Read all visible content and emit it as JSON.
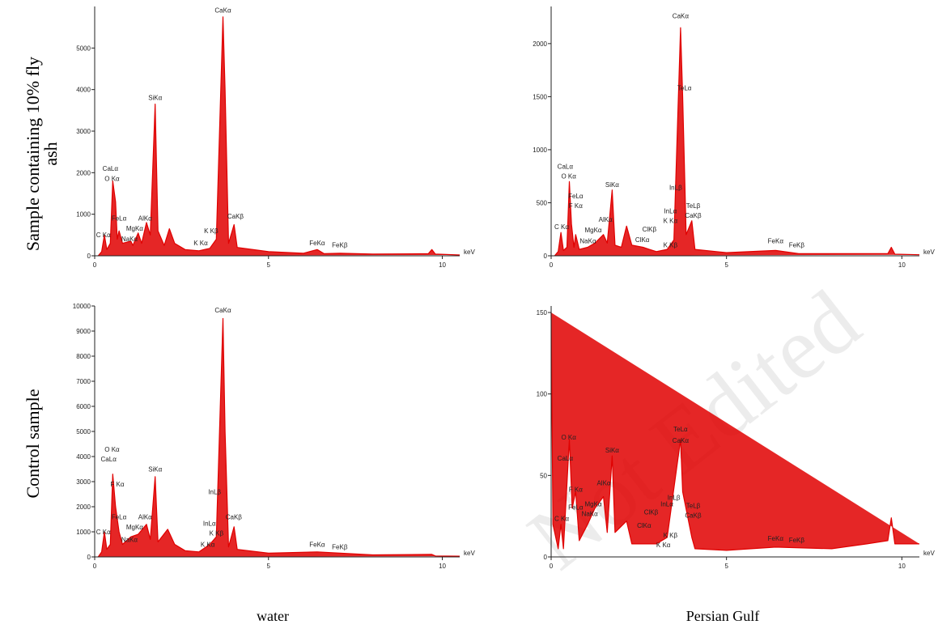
{
  "row_labels": [
    [
      "Sample containing 10% fly",
      "ash"
    ],
    [
      "Control sample"
    ]
  ],
  "column_labels": [
    "water",
    "Persian Gulf"
  ],
  "watermark": "Not Edited",
  "chart_data": [
    {
      "type": "line",
      "color": "#e00000",
      "xlabel": "keV",
      "xlim": [
        0,
        10.5
      ],
      "ylim": [
        0,
        6000
      ],
      "xticks": [
        0,
        5,
        10
      ],
      "yticks": [
        0,
        1000,
        2000,
        3000,
        4000,
        5000
      ],
      "x": [
        0.1,
        0.2,
        0.28,
        0.35,
        0.45,
        0.52,
        0.6,
        0.65,
        0.7,
        0.8,
        1.04,
        1.1,
        1.25,
        1.35,
        1.49,
        1.6,
        1.74,
        1.82,
        2.0,
        2.15,
        2.3,
        2.6,
        3.0,
        3.31,
        3.5,
        3.69,
        3.75,
        3.85,
        4.01,
        4.1,
        5,
        6.0,
        6.4,
        6.6,
        7.06,
        8,
        9.6,
        9.7,
        9.8,
        10.5
      ],
      "values": [
        0,
        100,
        500,
        150,
        300,
        1800,
        1300,
        400,
        600,
        300,
        350,
        250,
        550,
        300,
        800,
        500,
        3650,
        600,
        250,
        650,
        300,
        150,
        120,
        180,
        400,
        5750,
        4000,
        300,
        750,
        200,
        100,
        60,
        150,
        50,
        60,
        40,
        50,
        150,
        40,
        20
      ],
      "annotations": [
        {
          "text": "CaKα",
          "x": 3.69,
          "y": 5850
        },
        {
          "text": "SiKα",
          "x": 1.74,
          "y": 3750
        },
        {
          "text": "CaLα",
          "x": 0.45,
          "y": 2050
        },
        {
          "text": "O Kα",
          "x": 0.5,
          "y": 1800
        },
        {
          "text": "FeLα",
          "x": 0.7,
          "y": 850
        },
        {
          "text": "AlKα",
          "x": 1.45,
          "y": 850
        },
        {
          "text": "MgKα",
          "x": 1.15,
          "y": 600
        },
        {
          "text": "NaKα",
          "x": 1.0,
          "y": 350
        },
        {
          "text": "C Kα",
          "x": 0.25,
          "y": 450
        },
        {
          "text": "K Kβ",
          "x": 3.35,
          "y": 550
        },
        {
          "text": "CaKβ",
          "x": 4.05,
          "y": 900
        },
        {
          "text": "K Kα",
          "x": 3.05,
          "y": 250
        },
        {
          "text": "FeKα",
          "x": 6.4,
          "y": 250
        },
        {
          "text": "FeKβ",
          "x": 7.05,
          "y": 200
        }
      ]
    },
    {
      "type": "line",
      "color": "#e00000",
      "xlabel": "keV",
      "xlim": [
        0,
        10.5
      ],
      "ylim": [
        0,
        2350
      ],
      "xticks": [
        0,
        5,
        10
      ],
      "yticks": [
        0,
        500,
        1000,
        1500,
        2000
      ],
      "x": [
        0.1,
        0.2,
        0.28,
        0.35,
        0.45,
        0.52,
        0.58,
        0.65,
        0.7,
        0.8,
        1.04,
        1.25,
        1.49,
        1.6,
        1.74,
        1.82,
        2.0,
        2.15,
        2.3,
        2.62,
        2.8,
        3.0,
        3.31,
        3.5,
        3.69,
        3.75,
        3.85,
        4.01,
        4.1,
        5,
        6.4,
        7.06,
        9.6,
        9.7,
        9.8,
        10.5
      ],
      "values": [
        0,
        40,
        220,
        50,
        80,
        700,
        300,
        80,
        200,
        60,
        80,
        120,
        200,
        120,
        620,
        100,
        80,
        280,
        100,
        80,
        60,
        40,
        60,
        150,
        2150,
        1500,
        200,
        330,
        60,
        30,
        50,
        20,
        20,
        80,
        15,
        10
      ],
      "annotations": [
        {
          "text": "CaKα",
          "x": 3.69,
          "y": 2240
        },
        {
          "text": "TeLα",
          "x": 3.8,
          "y": 1560
        },
        {
          "text": "CaLα",
          "x": 0.4,
          "y": 820
        },
        {
          "text": "O Kα",
          "x": 0.5,
          "y": 730
        },
        {
          "text": "FeLα",
          "x": 0.7,
          "y": 540
        },
        {
          "text": "F Kα",
          "x": 0.7,
          "y": 450
        },
        {
          "text": "SiKα",
          "x": 1.74,
          "y": 650
        },
        {
          "text": "InLβ",
          "x": 3.55,
          "y": 620
        },
        {
          "text": "InLα",
          "x": 3.4,
          "y": 400
        },
        {
          "text": "K Kα",
          "x": 3.4,
          "y": 310
        },
        {
          "text": "TeLβ",
          "x": 4.05,
          "y": 450
        },
        {
          "text": "CaKβ",
          "x": 4.05,
          "y": 360
        },
        {
          "text": "AlKα",
          "x": 1.55,
          "y": 320
        },
        {
          "text": "MgKα",
          "x": 1.2,
          "y": 220
        },
        {
          "text": "NaKα",
          "x": 1.05,
          "y": 120
        },
        {
          "text": "C Kα",
          "x": 0.3,
          "y": 250
        },
        {
          "text": "ClKβ",
          "x": 2.8,
          "y": 230
        },
        {
          "text": "ClKα",
          "x": 2.6,
          "y": 130
        },
        {
          "text": "K Kβ",
          "x": 3.4,
          "y": 80
        },
        {
          "text": "FeKα",
          "x": 6.4,
          "y": 120
        },
        {
          "text": "FeKβ",
          "x": 7.0,
          "y": 80
        }
      ]
    },
    {
      "type": "line",
      "color": "#e00000",
      "xlabel": "keV",
      "xlim": [
        0,
        10.5
      ],
      "ylim": [
        0,
        10000
      ],
      "xticks": [
        0,
        5,
        10
      ],
      "yticks": [
        0,
        1000,
        2000,
        3000,
        4000,
        5000,
        6000,
        7000,
        8000,
        9000,
        10000
      ],
      "x": [
        0.1,
        0.2,
        0.28,
        0.35,
        0.45,
        0.52,
        0.6,
        0.7,
        0.8,
        1.04,
        1.25,
        1.49,
        1.6,
        1.74,
        1.82,
        2.1,
        2.3,
        2.6,
        3.0,
        3.31,
        3.5,
        3.69,
        3.75,
        3.85,
        4.01,
        4.1,
        5,
        6.4,
        8,
        9.7,
        9.8,
        10.5
      ],
      "values": [
        0,
        200,
        1000,
        300,
        500,
        3300,
        2000,
        1000,
        500,
        800,
        900,
        1300,
        700,
        3200,
        600,
        1100,
        500,
        250,
        200,
        500,
        800,
        9500,
        5000,
        400,
        1200,
        300,
        150,
        200,
        80,
        100,
        40,
        30
      ],
      "annotations": [
        {
          "text": "CaKα",
          "x": 3.69,
          "y": 9750
        },
        {
          "text": "O Kα",
          "x": 0.5,
          "y": 4200
        },
        {
          "text": "CaLα",
          "x": 0.4,
          "y": 3800
        },
        {
          "text": "F Kα",
          "x": 0.65,
          "y": 2800
        },
        {
          "text": "SiKα",
          "x": 1.74,
          "y": 3400
        },
        {
          "text": "InLβ",
          "x": 3.45,
          "y": 2500
        },
        {
          "text": "FeLα",
          "x": 0.7,
          "y": 1500
        },
        {
          "text": "AlKα",
          "x": 1.45,
          "y": 1500
        },
        {
          "text": "MgKα",
          "x": 1.15,
          "y": 1100
        },
        {
          "text": "NaKα",
          "x": 1.0,
          "y": 600
        },
        {
          "text": "C Kα",
          "x": 0.25,
          "y": 900
        },
        {
          "text": "InLα",
          "x": 3.3,
          "y": 1250
        },
        {
          "text": "K Kβ",
          "x": 3.5,
          "y": 850
        },
        {
          "text": "CaKβ",
          "x": 4.0,
          "y": 1500
        },
        {
          "text": "K Kα",
          "x": 3.25,
          "y": 400
        },
        {
          "text": "FeKα",
          "x": 6.4,
          "y": 400
        },
        {
          "text": "FeKβ",
          "x": 7.05,
          "y": 300
        }
      ]
    },
    {
      "type": "line",
      "color": "#e00000",
      "xlabel": "keV",
      "xlim": [
        0,
        10.5
      ],
      "ylim": [
        0,
        154
      ],
      "xticks": [
        0,
        5,
        10
      ],
      "yticks": [
        0,
        50,
        100,
        150
      ],
      "x": [
        0,
        0.05,
        0.2,
        0.28,
        0.35,
        0.52,
        0.6,
        0.7,
        0.8,
        1.04,
        1.25,
        1.49,
        1.6,
        1.74,
        1.82,
        2.15,
        2.3,
        3.0,
        3.31,
        3.69,
        3.75,
        4.01,
        4.1,
        5,
        6.4,
        8,
        9.0,
        9.6,
        9.7,
        9.8,
        10.5
      ],
      "values": [
        150,
        20,
        5,
        20,
        5,
        72,
        30,
        40,
        10,
        20,
        30,
        37,
        15,
        62,
        15,
        22,
        8,
        8,
        12,
        72,
        40,
        12,
        5,
        4,
        6,
        5,
        8,
        10,
        24,
        8,
        8
      ],
      "annotations": [
        {
          "text": "TeLα",
          "x": 3.69,
          "y": 77
        },
        {
          "text": "CaKα",
          "x": 3.69,
          "y": 70
        },
        {
          "text": "O Kα",
          "x": 0.5,
          "y": 72
        },
        {
          "text": "CaLα",
          "x": 0.4,
          "y": 59
        },
        {
          "text": "SiKα",
          "x": 1.74,
          "y": 64
        },
        {
          "text": "AlKα",
          "x": 1.5,
          "y": 44
        },
        {
          "text": "F Kα",
          "x": 0.7,
          "y": 40
        },
        {
          "text": "FeLα",
          "x": 0.7,
          "y": 29
        },
        {
          "text": "C Kα",
          "x": 0.3,
          "y": 22
        },
        {
          "text": "MgKα",
          "x": 1.2,
          "y": 31
        },
        {
          "text": "NaKα",
          "x": 1.1,
          "y": 25
        },
        {
          "text": "InLβ",
          "x": 3.5,
          "y": 35
        },
        {
          "text": "InLα",
          "x": 3.3,
          "y": 31
        },
        {
          "text": "TeLβ",
          "x": 4.05,
          "y": 30
        },
        {
          "text": "CaKβ",
          "x": 4.05,
          "y": 24
        },
        {
          "text": "ClKβ",
          "x": 2.85,
          "y": 26
        },
        {
          "text": "ClKα",
          "x": 2.65,
          "y": 18
        },
        {
          "text": "K Kβ",
          "x": 3.4,
          "y": 12
        },
        {
          "text": "K Kα",
          "x": 3.2,
          "y": 6
        },
        {
          "text": "FeKα",
          "x": 6.4,
          "y": 10
        },
        {
          "text": "FeKβ",
          "x": 7.0,
          "y": 9
        }
      ]
    }
  ]
}
